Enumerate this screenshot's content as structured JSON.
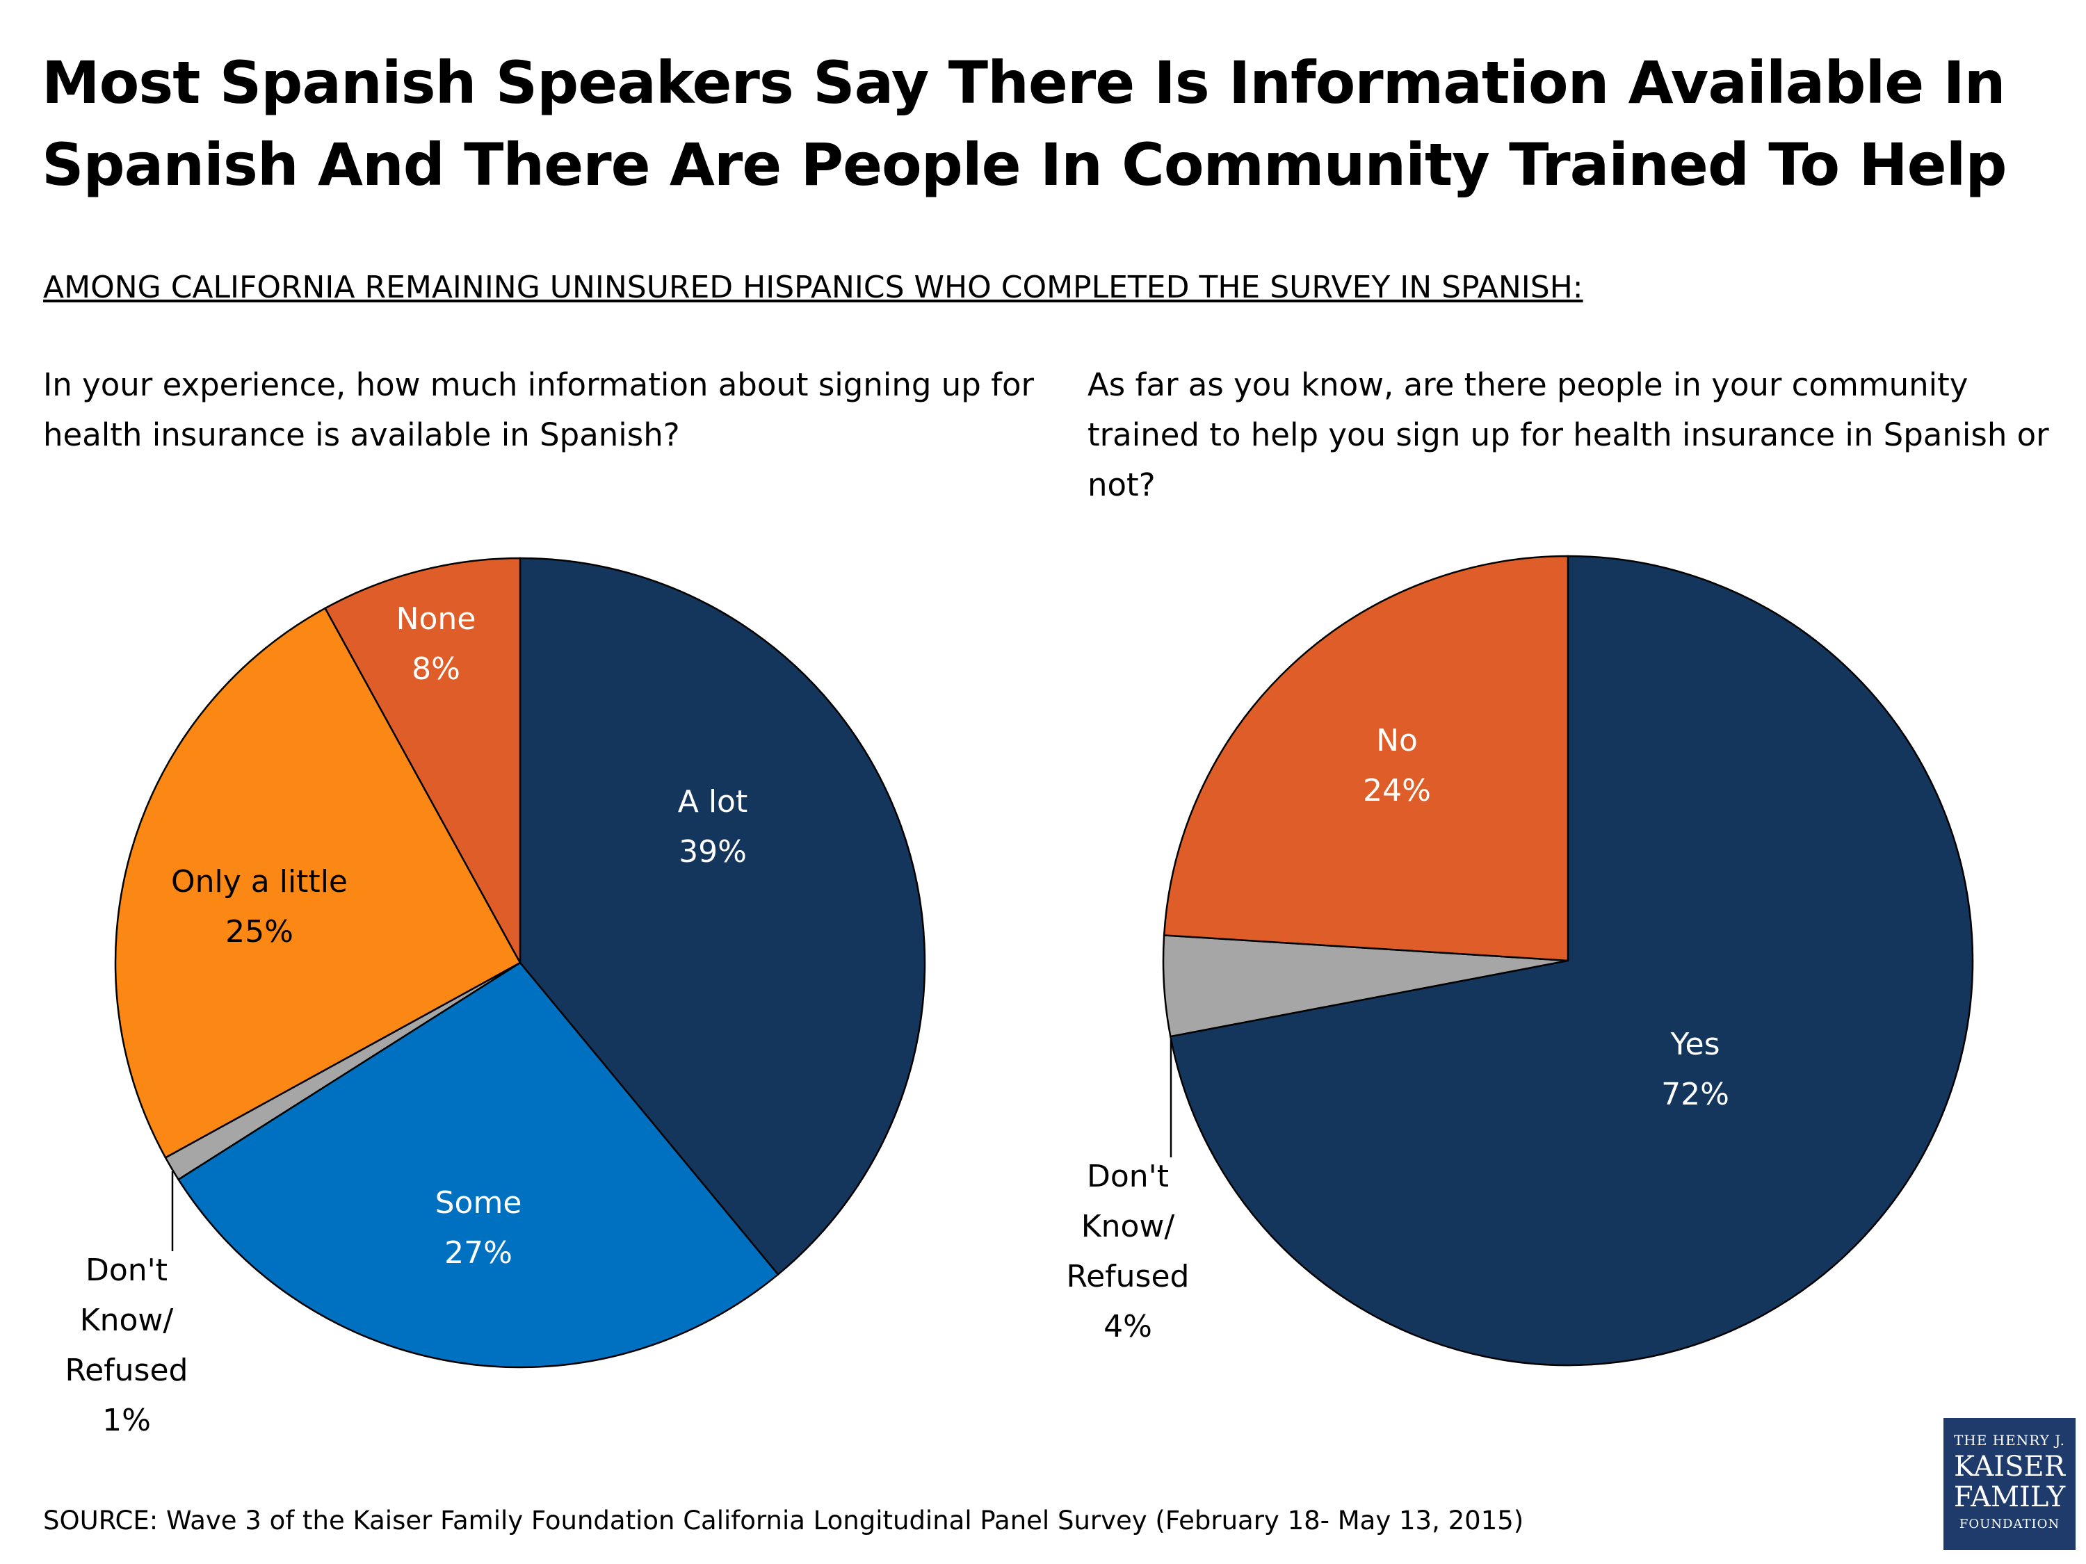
{
  "title": "Most Spanish Speakers Say There Is Information Available In Spanish And There Are People In Community Trained To Help",
  "subtitle": "AMONG CALIFORNIA REMAINING UNINSURED HISPANICS WHO COMPLETED THE SURVEY IN SPANISH:",
  "source": "SOURCE: Wave 3 of the Kaiser Family Foundation California Longitudinal Panel Survey (February 18- May 13, 2015)",
  "logo": {
    "line1": "THE HENRY J.",
    "line2": "KAISER",
    "line3": "FAMILY",
    "line4": "FOUNDATION",
    "color": "#1e3b6b"
  },
  "chart_data": [
    {
      "type": "pie",
      "title": "In your experience, how much information about signing up for health insurance is available in Spanish?",
      "slices": [
        {
          "label": "A lot",
          "value": 39,
          "value_label": "39%",
          "color": "#14365c"
        },
        {
          "label": "Some",
          "value": 27,
          "value_label": "27%",
          "color": "#0070c0"
        },
        {
          "label": "Don't Know/ Refused",
          "value": 1,
          "value_label": "1%",
          "color": "#a6a6a6"
        },
        {
          "label": "Only a little",
          "value": 25,
          "value_label": "25%",
          "color": "#fb8714"
        },
        {
          "label": "None",
          "value": 8,
          "value_label": "8%",
          "color": "#df5d28"
        }
      ]
    },
    {
      "type": "pie",
      "title": "As far as you know, are there people in your community trained to help you sign up for health insurance in Spanish or not?",
      "slices": [
        {
          "label": "Yes",
          "value": 72,
          "value_label": "72%",
          "color": "#14365c"
        },
        {
          "label": "Don't Know/ Refused",
          "value": 4,
          "value_label": "4%",
          "color": "#a6a6a6"
        },
        {
          "label": "No",
          "value": 24,
          "value_label": "24%",
          "color": "#df5d28"
        }
      ]
    }
  ]
}
